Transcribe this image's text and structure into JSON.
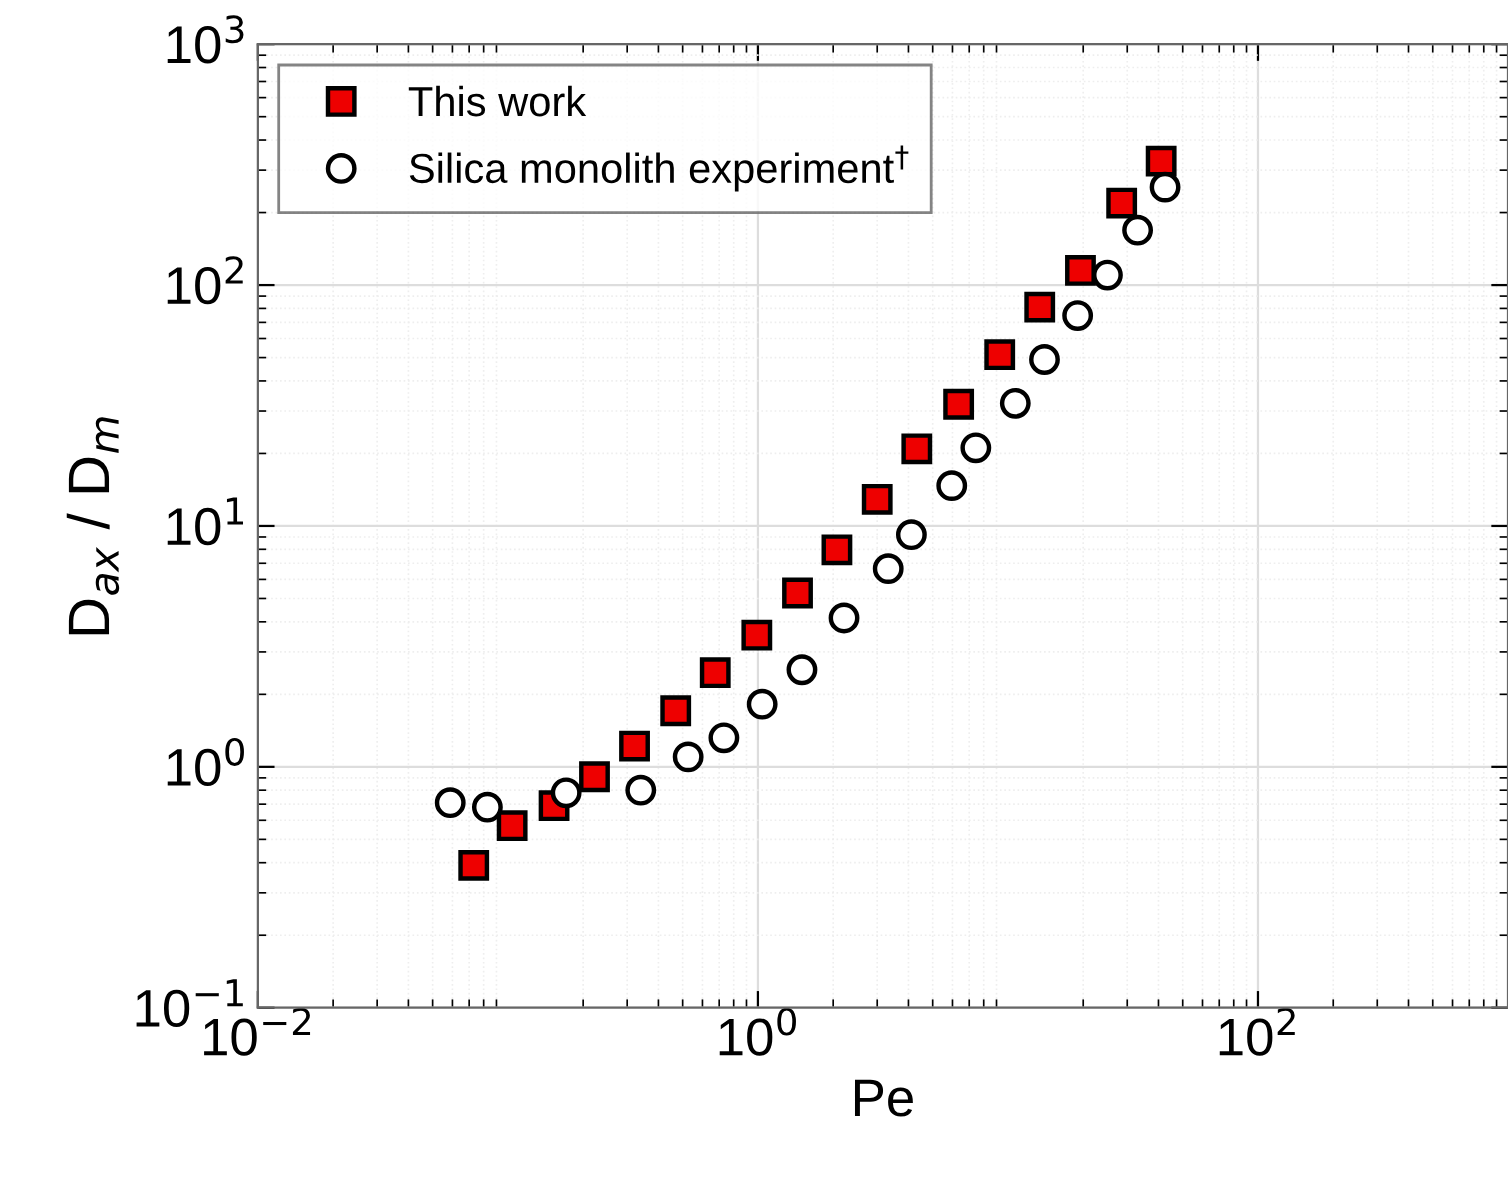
{
  "chart_data": {
    "type": "scatter",
    "xlabel": "Pe",
    "ylabel": "D$_{ax}$ / D$_{m}$",
    "log": "xy",
    "grid": true,
    "legend": "top left",
    "xlim": [
      0.01,
      1000
    ],
    "ylim": [
      0.1,
      1000
    ],
    "xticks": [
      {
        "value": 0.01,
        "label": "10$^{−2}$"
      },
      {
        "value": 1,
        "label": "10$^{0}$"
      },
      {
        "value": 100,
        "label": "10$^{2}$"
      }
    ],
    "yticks": [
      {
        "value": 0.1,
        "label": "10$^{−1}$"
      },
      {
        "value": 1,
        "label": "10$^{0}$"
      },
      {
        "value": 10,
        "label": "10$^{1}$"
      },
      {
        "value": 100,
        "label": "10$^{2}$"
      },
      {
        "value": 1000,
        "label": "10$^{3}$"
      }
    ],
    "series": [
      {
        "name": "This work",
        "color": "#ee0000",
        "marker": "square",
        "x": [
          0.073,
          0.104,
          0.153,
          0.222,
          0.321,
          0.469,
          0.675,
          0.99,
          1.44,
          2.07,
          3.0,
          4.32,
          6.35,
          9.27,
          13.4,
          19.5,
          28.5,
          41.0
        ],
        "values": [
          0.39,
          0.57,
          0.69,
          0.91,
          1.22,
          1.71,
          2.46,
          3.52,
          5.27,
          7.96,
          12.9,
          20.9,
          32.0,
          51.4,
          81,
          115,
          219,
          327
        ]
      },
      {
        "name": "Silica monolith experiment$^{†}$",
        "color": "#ffffff",
        "marker": "circle",
        "x": [
          0.0588,
          0.0828,
          0.171,
          0.34,
          0.526,
          0.731,
          1.04,
          1.5,
          2.21,
          3.32,
          4.11,
          5.96,
          7.44,
          10.7,
          14.0,
          19.0,
          25.0,
          33.0,
          42.5
        ],
        "values": [
          0.71,
          0.68,
          0.78,
          0.8,
          1.1,
          1.32,
          1.82,
          2.53,
          4.15,
          6.65,
          9.2,
          14.7,
          21.1,
          32.3,
          49.1,
          74.7,
          110,
          169,
          255
        ]
      }
    ]
  }
}
